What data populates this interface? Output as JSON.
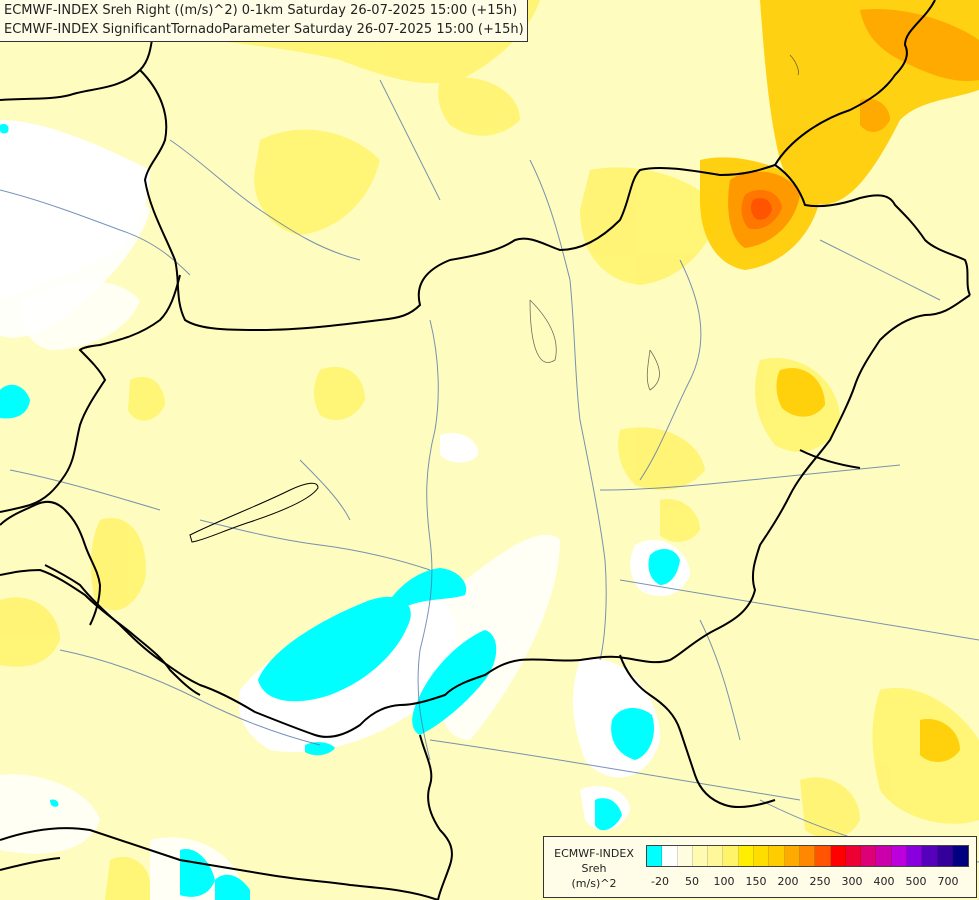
{
  "title": {
    "line1": "ECMWF-INDEX Sreh Right ((m/s)^2) 0-1km Saturday 26-07-2025 15:00 (+15h)",
    "line2": "ECMWF-INDEX SignificantTornadoParameter Saturday 26-07-2025 15:00 (+15h)"
  },
  "legend": {
    "label_line1": "ECMWF-INDEX",
    "label_line2": "Sreh",
    "label_line3": "(m/s)^2",
    "colors": [
      "#00ffff",
      "#ffffff",
      "#fffde0",
      "#fffbb0",
      "#fff89a",
      "#fff36a",
      "#ffee00",
      "#ffdd00",
      "#ffcc00",
      "#ffaa00",
      "#ff8800",
      "#ff5500",
      "#ff0000",
      "#ee0033",
      "#dd0077",
      "#cc00aa",
      "#bb00dd",
      "#8800dd",
      "#5500bb",
      "#330099",
      "#000080"
    ],
    "ticks": [
      "-20",
      "50",
      "100",
      "150",
      "200",
      "250",
      "300",
      "400",
      "500",
      "700"
    ]
  },
  "map": {
    "background_color": "#fffcc0",
    "low_color": "#00ffff",
    "neutral_color": "#ffffff",
    "mid_color": "#fff36a",
    "high_color": "#ffcc00",
    "peak_color": "#ff7700",
    "border_color": "#000000",
    "river_color": "#5577aa"
  }
}
